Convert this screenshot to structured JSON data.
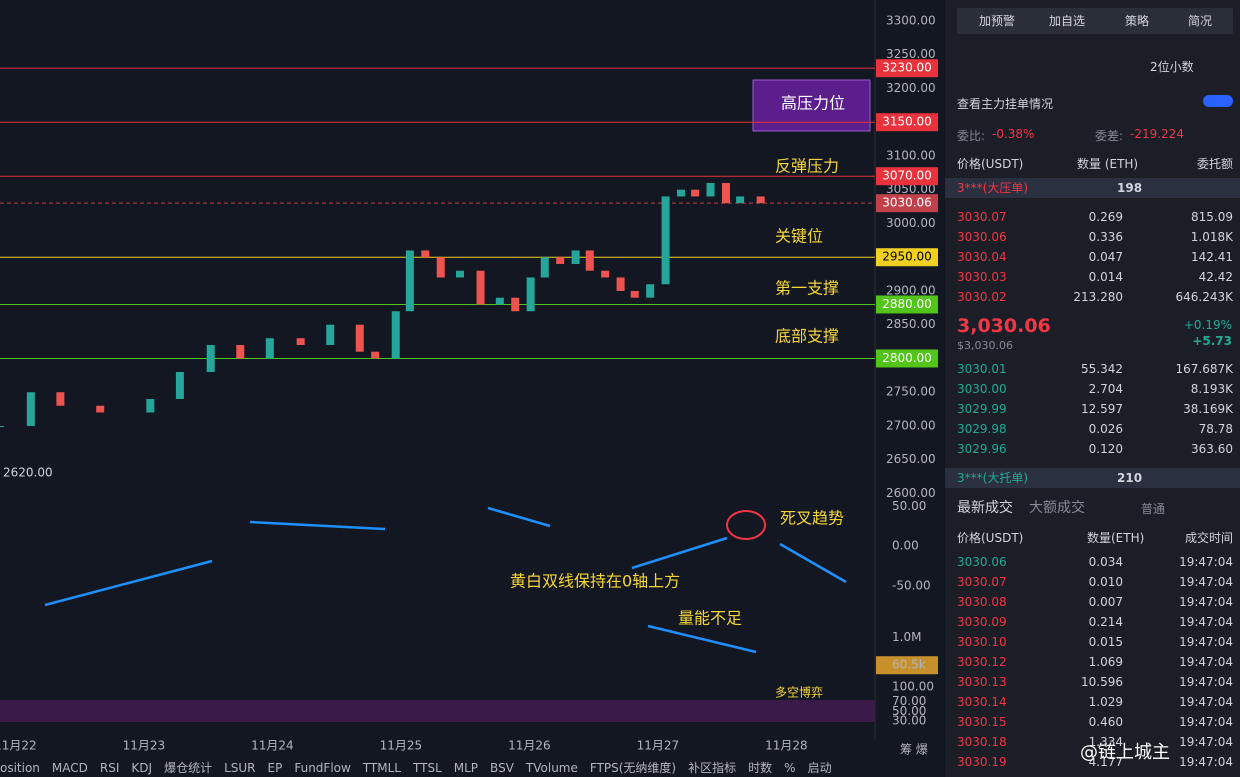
{
  "chart_data": {
    "type": "candlestick",
    "x": [
      21.88,
      22.12,
      22.35,
      22.66,
      23.05,
      23.28,
      23.52,
      23.75,
      23.98,
      24.22,
      24.45,
      24.68,
      24.8,
      24.96,
      25.07,
      25.19,
      25.31,
      25.46,
      25.62,
      25.77,
      25.89,
      26.01,
      26.12,
      26.24,
      26.36,
      26.47,
      26.59,
      26.71,
      26.82,
      26.94,
      27.06,
      27.18,
      27.29,
      27.41,
      27.53,
      27.64,
      27.8
    ],
    "close": [
      2700,
      2750,
      2730,
      2720,
      2740,
      2780,
      2820,
      2800,
      2830,
      2820,
      2850,
      2810,
      2800,
      2870,
      2960,
      2950,
      2920,
      2930,
      2880,
      2890,
      2870,
      2920,
      2950,
      2940,
      2960,
      2930,
      2920,
      2900,
      2890,
      2910,
      3040,
      3050,
      3040,
      3060,
      3030,
      3040,
      3030
    ],
    "up_color": "#26a69a",
    "down_color": "#ef5350",
    "xlim": [
      21.88,
      28.69
    ],
    "xticks": [
      {
        "value": 22,
        "label": "11月22"
      },
      {
        "value": 23,
        "label": "11月23"
      },
      {
        "value": 24,
        "label": "11月24"
      },
      {
        "value": 25,
        "label": "11月25"
      },
      {
        "value": 26,
        "label": "11月26"
      },
      {
        "value": 27,
        "label": "11月27"
      },
      {
        "value": 28,
        "label": "11月28"
      }
    ],
    "ylim": [
      2580,
      3331
    ],
    "yticks": [
      {
        "value": 3300,
        "label": "3300.00"
      },
      {
        "value": 3250,
        "label": "3250.00"
      },
      {
        "value": 3200,
        "label": "3200.00"
      },
      {
        "value": 3100,
        "label": "3100.00"
      },
      {
        "value": 3050,
        "label": "3050.00"
      },
      {
        "value": 3000,
        "label": "3000.00"
      },
      {
        "value": 2900,
        "label": "2900.00"
      },
      {
        "value": 2850,
        "label": "2850.00"
      },
      {
        "value": 2750,
        "label": "2750.00"
      },
      {
        "value": 2700,
        "label": "2700.00"
      },
      {
        "value": 2650,
        "label": "2650.00"
      },
      {
        "value": 2600,
        "label": "2600.00"
      }
    ],
    "levels": [
      {
        "value": 3230,
        "label": "3230.00",
        "color": "#e8323c"
      },
      {
        "value": 3150,
        "label": "3150.00",
        "color": "#e8323c"
      },
      {
        "value": 3070,
        "label": "3070.00",
        "color": "#e8323c"
      },
      {
        "value": 3030.06,
        "label": "3030.06",
        "color": "#c0414a"
      },
      {
        "value": 2950,
        "label": "2950.00",
        "color": "#f0d020"
      },
      {
        "value": 2880,
        "label": "2880.00",
        "color": "#52c41a"
      },
      {
        "value": 2800,
        "label": "2800.00",
        "color": "#52c41a"
      }
    ],
    "low_label": "2620.00",
    "annotations": [
      "高压力位",
      "反弹压力",
      "关键位",
      "第一支撑",
      "底部支撑",
      "死叉趋势",
      "黄白双线保持在0轴上方",
      "量能不足",
      "多空博弈"
    ],
    "macd": {
      "ylim": [
        -68,
        71
      ],
      "yticks": [
        {
          "value": 50,
          "label": "50.00"
        },
        {
          "value": 0,
          "label": "0.00"
        },
        {
          "value": -50,
          "label": "-50.00"
        }
      ]
    },
    "volume": {
      "ylim": [
        0,
        1600000
      ],
      "yticks": [
        {
          "value": 1000000,
          "label": "1.0M"
        }
      ],
      "last": {
        "value": 60500,
        "label": "60.5k"
      }
    },
    "rsi": {
      "ylim": [
        22,
        108
      ],
      "yticks": [
        {
          "value": 100,
          "label": "100.00"
        },
        {
          "value": 70,
          "label": "70.00"
        },
        {
          "value": 50,
          "label": "50.00"
        },
        {
          "value": 30,
          "label": "30.00"
        }
      ]
    }
  },
  "toolbar": [
    "osition",
    "MACD",
    "RSI",
    "KDJ",
    "爆仓统计",
    "LSUR",
    "EP",
    "FundFlow",
    "TTMLL",
    "TTSL",
    "MLP",
    "BSV",
    "TVolume",
    "FTPS(无纳维度)",
    "补区指标",
    "时数",
    "%",
    "启动"
  ],
  "panel": {
    "buttons": [
      "加预警",
      "加自选",
      "策略",
      "简况"
    ],
    "decimals": "2位小数",
    "main_orders": "查看主力挂单情况",
    "ratio_label": "委比:",
    "ratio": "-0.38%",
    "diff_label": "委差:",
    "diff": "-219.224",
    "headers": [
      "价格(USDT)",
      "数量 (ETH)",
      "委托额"
    ],
    "big_ask": {
      "name": "3***(大压单)",
      "qty": "198"
    },
    "asks": [
      [
        "3030.07",
        "0.269",
        "815.09"
      ],
      [
        "3030.06",
        "0.336",
        "1.018K"
      ],
      [
        "3030.04",
        "0.047",
        "142.41"
      ],
      [
        "3030.03",
        "0.014",
        "42.42"
      ],
      [
        "3030.02",
        "213.280",
        "646.243K"
      ]
    ],
    "price": "3,030.06",
    "price_usd": "$3,030.06",
    "change_pct": "+0.19%",
    "change": "+5.73",
    "bids": [
      [
        "3030.01",
        "55.342",
        "167.687K"
      ],
      [
        "3030.00",
        "2.704",
        "8.193K"
      ],
      [
        "3029.99",
        "12.597",
        "38.169K"
      ],
      [
        "3029.98",
        "0.026",
        "78.78"
      ],
      [
        "3029.96",
        "0.120",
        "363.60"
      ]
    ],
    "big_bid": {
      "name": "3***(大托单)",
      "qty": "210"
    },
    "trade_tabs": [
      "最新成交",
      "大额成交",
      "普通"
    ],
    "trade_headers": [
      "价格(USDT)",
      "数量(ETH)",
      "成交时间"
    ],
    "trades": [
      [
        "3030.06",
        "0.034",
        "19:47:04"
      ],
      [
        "3030.07",
        "0.010",
        "19:47:04"
      ],
      [
        "3030.08",
        "0.007",
        "19:47:04"
      ],
      [
        "3030.09",
        "0.214",
        "19:47:04"
      ],
      [
        "3030.10",
        "0.015",
        "19:47:04"
      ],
      [
        "3030.12",
        "1.069",
        "19:47:04"
      ],
      [
        "3030.13",
        "10.596",
        "19:47:04"
      ],
      [
        "3030.14",
        "1.029",
        "19:47:04"
      ],
      [
        "3030.15",
        "0.460",
        "19:47:04"
      ],
      [
        "3030.18",
        "1.334",
        "19:47:04"
      ],
      [
        "3030.19",
        "4.177",
        "19:47:04"
      ]
    ]
  },
  "watermark": "@链上城主"
}
